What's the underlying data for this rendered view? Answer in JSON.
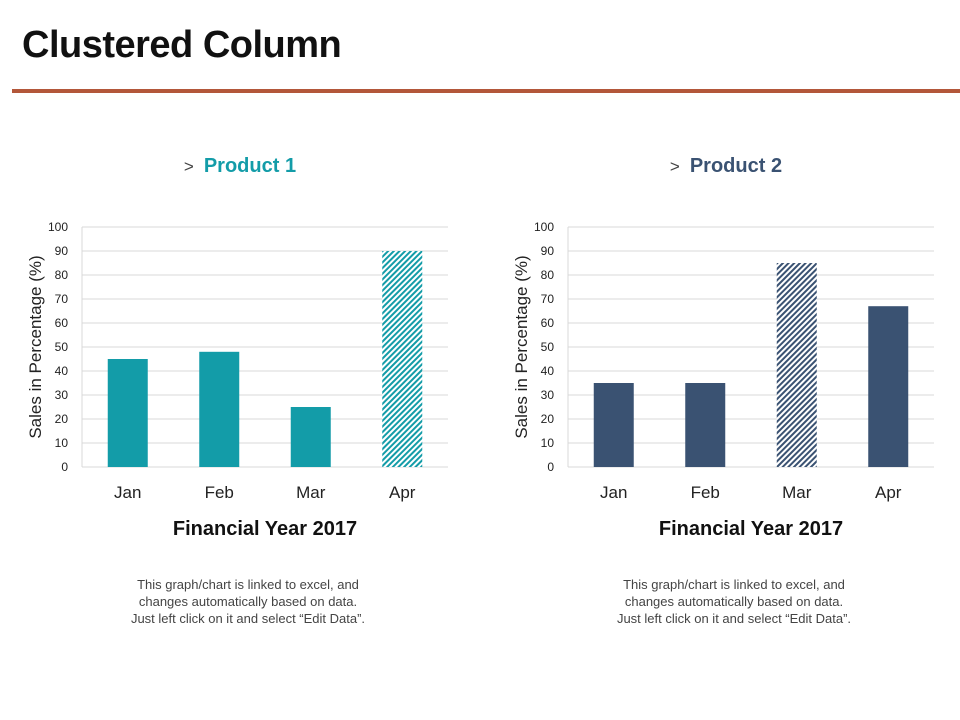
{
  "slide": {
    "title": "Clustered Column",
    "accent_color": "#b3573a"
  },
  "chart_data": [
    {
      "type": "bar",
      "title": "Product 1",
      "title_color": "#139ca8",
      "categories": [
        "Jan",
        "Feb",
        "Mar",
        "Apr"
      ],
      "values": [
        45,
        48,
        25,
        90
      ],
      "highlight_index": 3,
      "bar_color": "#139ca8",
      "xlabel": "Financial Year 2017",
      "ylabel": "Sales in Percentage (%)",
      "ylim": [
        0,
        100
      ],
      "yticks": [
        0,
        10,
        20,
        30,
        40,
        50,
        60,
        70,
        80,
        90,
        100
      ],
      "grid": true,
      "note": "This graph/chart is linked to excel, and changes automatically based on data. Just left click on it and select “Edit Data”."
    },
    {
      "type": "bar",
      "title": "Product 2",
      "title_color": "#3a5272",
      "categories": [
        "Jan",
        "Feb",
        "Mar",
        "Apr"
      ],
      "values": [
        35,
        35,
        85,
        67
      ],
      "highlight_index": 2,
      "bar_color": "#3a5272",
      "xlabel": "Financial Year 2017",
      "ylabel": "Sales in Percentage (%)",
      "ylim": [
        0,
        100
      ],
      "yticks": [
        0,
        10,
        20,
        30,
        40,
        50,
        60,
        70,
        80,
        90,
        100
      ],
      "grid": true,
      "note": "This graph/chart is linked to excel, and changes automatically based on data. Just left click on it and select “Edit Data”."
    }
  ],
  "chevron": ">"
}
